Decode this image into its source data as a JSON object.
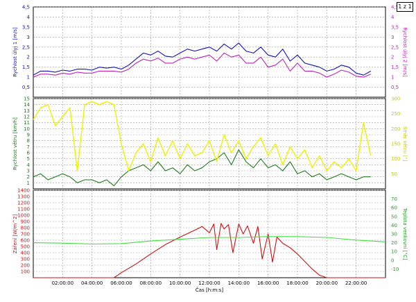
{
  "page_label": "1 z 1",
  "chart_data": [
    {
      "type": "line",
      "title": "",
      "ylabel_left": "Rychlost úlyj 1 [m/s]",
      "ylabel_right": "Rychlost úlyj 2 [m/s]",
      "ylim": [
        0,
        4.5
      ],
      "yticks_left": [
        "0,5",
        "1",
        "1,5",
        "2",
        "2,5",
        "3",
        "3,5",
        "4",
        "4,5"
      ],
      "yticks_right": [
        "0,5",
        "1",
        "1,5",
        "2",
        "2,5",
        "3",
        "3,5",
        "4",
        "4,5"
      ],
      "xlim": [
        0,
        24
      ],
      "grid": true,
      "series": [
        {
          "color": "#1010c0",
          "x": [
            0,
            0.5,
            1,
            1.5,
            2,
            2.5,
            3,
            3.5,
            4,
            4.5,
            5,
            5.5,
            6,
            6.5,
            7,
            7.5,
            8,
            8.5,
            9,
            9.5,
            10,
            10.5,
            11,
            11.5,
            12,
            12.5,
            13,
            13.5,
            14,
            14.5,
            15,
            15.5,
            16,
            16.5,
            17,
            17.5,
            18,
            18.5,
            19,
            19.5,
            20,
            20.5,
            21,
            21.5,
            22,
            22.5,
            23
          ],
          "values": [
            1.1,
            1.3,
            1.3,
            1.25,
            1.35,
            1.3,
            1.4,
            1.4,
            1.35,
            1.5,
            1.45,
            1.5,
            1.4,
            1.6,
            1.9,
            2.2,
            2.1,
            2.3,
            2.05,
            2.0,
            2.2,
            2.4,
            2.3,
            2.4,
            2.5,
            2.3,
            2.65,
            2.4,
            2.7,
            2.3,
            2.2,
            2.5,
            2.1,
            2.0,
            2.4,
            1.8,
            2.1,
            1.7,
            1.6,
            1.5,
            1.3,
            1.4,
            1.6,
            1.5,
            1.2,
            1.1,
            1.3
          ]
        },
        {
          "color": "#c020c0",
          "x": [
            0,
            0.5,
            1,
            1.5,
            2,
            2.5,
            3,
            3.5,
            4,
            4.5,
            5,
            5.5,
            6,
            6.5,
            7,
            7.5,
            8,
            8.5,
            9,
            9.5,
            10,
            10.5,
            11,
            11.5,
            12,
            12.5,
            13,
            13.5,
            14,
            14.5,
            15,
            15.5,
            16,
            16.5,
            17,
            17.5,
            18,
            18.5,
            19,
            19.5,
            20,
            20.5,
            21,
            21.5,
            22,
            22.5,
            23
          ],
          "values": [
            1.0,
            1.15,
            1.15,
            1.1,
            1.2,
            1.15,
            1.25,
            1.2,
            1.2,
            1.3,
            1.3,
            1.3,
            1.25,
            1.4,
            1.7,
            1.9,
            1.8,
            1.95,
            1.7,
            1.7,
            1.9,
            2.0,
            1.9,
            2.0,
            2.1,
            1.8,
            2.2,
            2.0,
            2.1,
            1.7,
            1.7,
            2.0,
            1.5,
            1.6,
            1.9,
            1.3,
            1.7,
            1.3,
            1.3,
            1.2,
            1.0,
            1.15,
            1.35,
            1.25,
            1.05,
            1.0,
            1.15
          ]
        }
      ]
    },
    {
      "type": "line",
      "title": "",
      "ylabel_left": "Rychlost větru [km/h]",
      "ylabel_right": "Směr větru [°]",
      "ylim": [
        0,
        15
      ],
      "ylim_right": [
        0,
        300
      ],
      "yticks_left": [
        "1",
        "2",
        "3",
        "4",
        "5",
        "6",
        "7",
        "8",
        "9",
        "10",
        "11",
        "12",
        "13",
        "14",
        "15"
      ],
      "yticks_right": [
        "50",
        "100",
        "150",
        "200",
        "250",
        "300"
      ],
      "xlim": [
        0,
        24
      ],
      "grid": true,
      "series": [
        {
          "color": "#1a7a1a",
          "x": [
            0,
            0.5,
            1,
            1.5,
            2,
            2.5,
            3,
            3.5,
            4,
            4.5,
            5,
            5.5,
            6,
            6.5,
            7,
            7.5,
            8,
            8.5,
            9,
            9.5,
            10,
            10.5,
            11,
            11.5,
            12,
            12.5,
            13,
            13.5,
            14,
            14.5,
            15,
            15.5,
            16,
            16.5,
            17,
            17.5,
            18,
            18.5,
            19,
            19.5,
            20,
            20.5,
            21,
            21.5,
            22,
            22.5,
            23
          ],
          "values": [
            2.0,
            2.5,
            1.5,
            2.0,
            2.5,
            2.0,
            1.0,
            1.5,
            1.5,
            1.0,
            1.5,
            0.5,
            2.0,
            3.0,
            3.5,
            4.0,
            3.0,
            4.5,
            3.0,
            3.5,
            2.5,
            4.0,
            3.0,
            3.5,
            4.5,
            5.0,
            6.0,
            4.0,
            6.5,
            4.5,
            3.5,
            5.0,
            3.5,
            4.0,
            3.0,
            4.5,
            2.5,
            3.0,
            2.0,
            2.5,
            1.5,
            2.0,
            2.5,
            2.0,
            1.5,
            2.0,
            2.0
          ]
        },
        {
          "color": "#f0f000",
          "x": [
            0,
            0.5,
            1,
            1.5,
            2,
            2.5,
            3,
            3.5,
            4,
            4.5,
            5,
            5.5,
            6,
            6.5,
            7,
            7.5,
            8,
            8.5,
            9,
            9.5,
            10,
            10.5,
            11,
            11.5,
            12,
            12.5,
            13,
            13.5,
            14,
            14.5,
            15,
            15.5,
            16,
            16.5,
            17,
            17.5,
            18,
            18.5,
            19,
            19.5,
            20,
            20.5,
            21,
            21.5,
            22,
            22.5,
            23
          ],
          "values": [
            230,
            270,
            280,
            210,
            240,
            270,
            60,
            280,
            290,
            280,
            290,
            280,
            150,
            60,
            120,
            150,
            90,
            170,
            110,
            160,
            100,
            150,
            110,
            120,
            160,
            90,
            180,
            120,
            160,
            100,
            140,
            170,
            110,
            150,
            80,
            140,
            100,
            130,
            70,
            110,
            60,
            90,
            70,
            100,
            60,
            220,
            110
          ]
        }
      ]
    },
    {
      "type": "line",
      "title": "",
      "xlabel": "Čas [h:m:s]",
      "ylabel_left": "Záření [W/m^2]",
      "ylabel_right": "Teplota venkovní [°C]",
      "ylim": [
        0,
        1400
      ],
      "ylim_right": [
        -20,
        80
      ],
      "yticks_left": [
        "100",
        "200",
        "300",
        "400",
        "500",
        "600",
        "700",
        "800",
        "900",
        "1000",
        "1100",
        "1200",
        "1300",
        "1400"
      ],
      "yticks_right": [
        "-10",
        "0",
        "10",
        "20",
        "30",
        "40",
        "50",
        "60",
        "70"
      ],
      "xticks": [
        "02:00:00",
        "04:00:00",
        "06:00:00",
        "08:00:00",
        "10:00:00",
        "12:00:00",
        "14:00:00",
        "16:00:00",
        "18:00:00",
        "20:00:00",
        "22:00:00"
      ],
      "xlim": [
        0,
        24
      ],
      "grid": true,
      "series": [
        {
          "color": "#cc1010",
          "x": [
            0,
            5,
            5.5,
            6,
            7,
            8,
            9,
            10,
            11,
            11.5,
            12,
            12.3,
            12.5,
            12.8,
            13,
            13.3,
            13.6,
            14,
            14.3,
            14.6,
            15,
            15.3,
            15.6,
            16,
            16.3,
            16.6,
            17,
            17.5,
            18,
            18.5,
            19,
            19.5,
            20,
            24
          ],
          "values": [
            0,
            0,
            0,
            80,
            220,
            380,
            530,
            650,
            760,
            820,
            720,
            860,
            450,
            870,
            780,
            850,
            400,
            860,
            700,
            830,
            550,
            820,
            300,
            700,
            250,
            650,
            550,
            480,
            380,
            260,
            140,
            40,
            0,
            0
          ]
        },
        {
          "color": "#40e040",
          "x": [
            0,
            2,
            4,
            6,
            8,
            10,
            12,
            14,
            16,
            18,
            20,
            22,
            24
          ],
          "values": [
            20,
            19.5,
            18.5,
            19,
            22,
            24,
            26,
            26,
            27,
            27,
            26,
            23,
            21
          ]
        }
      ]
    }
  ]
}
